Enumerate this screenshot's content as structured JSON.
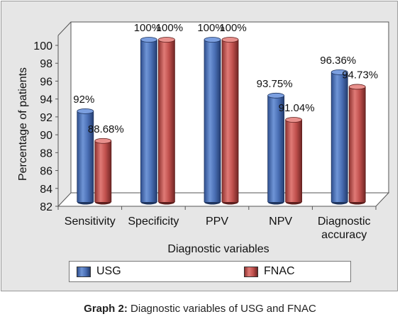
{
  "chart_data": {
    "type": "bar",
    "categories": [
      "Sensitivity",
      "Specificity",
      "PPV",
      "NPV",
      "Diagnostic accuracy"
    ],
    "series": [
      {
        "name": "USG",
        "values": [
          92,
          100,
          100,
          93.75,
          96.36
        ],
        "labels": [
          "92%",
          "100%",
          "100%",
          "93.75%",
          "96.36%"
        ],
        "color": "#4a6fb5"
      },
      {
        "name": "FNAC",
        "values": [
          88.68,
          100,
          100,
          91.04,
          94.73
        ],
        "labels": [
          "88.68%",
          "100%",
          "100%",
          "91.04%",
          "94.73%"
        ],
        "color": "#c0504d"
      }
    ],
    "xlabel": "Diagnostic variables",
    "ylabel": "Percentage of patients",
    "ylim": [
      82,
      100
    ],
    "yticks": [
      82,
      84,
      86,
      88,
      90,
      92,
      94,
      96,
      98,
      100
    ],
    "grid": false,
    "legend": "bottom"
  },
  "caption": {
    "bold": "Graph 2:",
    "text": "Diagnostic variables of USG and FNAC"
  }
}
